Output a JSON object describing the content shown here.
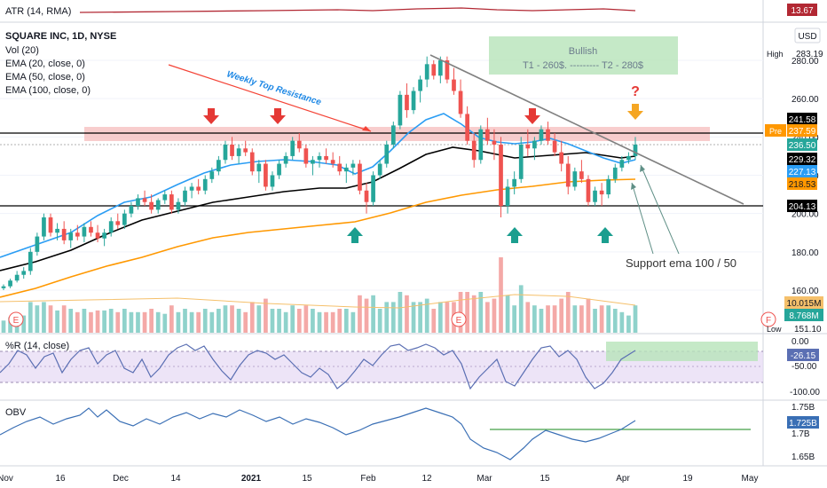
{
  "atr": {
    "label": "ATR (14, RMA)",
    "value": "13.67",
    "color": "#b22833"
  },
  "legend": {
    "symbol": "SQUARE INC, 1D, NYSE",
    "lines": [
      "Vol (20)",
      "EMA (20, close, 0)",
      "EMA (50, close, 0)",
      "EMA (100, close, 0)"
    ]
  },
  "currency_button": "USD",
  "price_axis": {
    "ticks": [
      "280.00",
      "260.00",
      "240.00",
      "220.00",
      "200.00",
      "180.00",
      "160.00"
    ],
    "labels": {
      "high_tag": "High",
      "high": "283.19",
      "pre_tag": "Pre",
      "pre": "237.59",
      "resistance": "241.58",
      "last": "236.50",
      "ema50": "229.32",
      "ema20": "227.13",
      "ema100": "218.53",
      "support": "204.13",
      "vol_ma": "10.015M",
      "vol": "8.768M",
      "low_tag": "Low",
      "low": "151.10"
    }
  },
  "annotations": {
    "weekly_top_resistance": "Weekly Top Resistance",
    "bullish_title": "Bullish",
    "bullish_targets": "T1 - 260$. --------- T2 - 280$",
    "question": "?",
    "support_note": "Support ema 100 / 50",
    "earnings_badge": "E",
    "future_badge": "F"
  },
  "wr": {
    "label": "%R (14, close)",
    "ticks": [
      "0.00",
      "-50.00",
      "-100.00"
    ],
    "value": "-26.15"
  },
  "obv": {
    "label": "OBV",
    "ticks": [
      "1.75B",
      "1.7B",
      "1.65B"
    ],
    "value": "1.725B"
  },
  "time_axis": [
    "Nov",
    "16",
    "Dec",
    "14",
    "2021",
    "15",
    "Feb",
    "12",
    "Mar",
    "15",
    "Apr",
    "19",
    "May"
  ],
  "colors": {
    "up": "#26a69a",
    "down": "#ef5350",
    "ema20": "#2a9df4",
    "ema50": "#000000",
    "ema100": "#ff9800",
    "wr_line": "#5b6fb3",
    "obv_line": "#3a6fb5",
    "resistance_zone": "#f5b8b8",
    "target_zone": "#b7e4b9",
    "wr_band": "#e6d9f3"
  },
  "chart_data": {
    "type": "candlestick",
    "y_ticks": [
      160,
      180,
      200,
      220,
      240,
      260,
      280
    ],
    "levels": {
      "resistance": 241.58,
      "support": 204.13
    },
    "candles": [
      [
        161,
        163,
        160,
        162
      ],
      [
        162,
        166,
        161,
        165
      ],
      [
        165,
        170,
        164,
        168
      ],
      [
        168,
        172,
        166,
        170
      ],
      [
        170,
        182,
        168,
        180
      ],
      [
        180,
        190,
        178,
        188
      ],
      [
        188,
        200,
        186,
        198
      ],
      [
        198,
        200,
        188,
        190
      ],
      [
        190,
        195,
        186,
        192
      ],
      [
        192,
        196,
        184,
        186
      ],
      [
        186,
        192,
        182,
        190
      ],
      [
        190,
        194,
        186,
        188
      ],
      [
        188,
        195,
        185,
        193
      ],
      [
        193,
        196,
        188,
        190
      ],
      [
        190,
        194,
        185,
        187
      ],
      [
        187,
        192,
        183,
        190
      ],
      [
        190,
        198,
        188,
        196
      ],
      [
        196,
        200,
        192,
        194
      ],
      [
        194,
        202,
        192,
        200
      ],
      [
        200,
        206,
        198,
        204
      ],
      [
        204,
        210,
        202,
        208
      ],
      [
        208,
        212,
        204,
        206
      ],
      [
        206,
        210,
        200,
        202
      ],
      [
        202,
        208,
        200,
        207
      ],
      [
        207,
        212,
        205,
        210
      ],
      [
        210,
        212,
        200,
        202
      ],
      [
        202,
        208,
        200,
        206
      ],
      [
        206,
        214,
        204,
        212
      ],
      [
        212,
        216,
        208,
        214
      ],
      [
        214,
        218,
        210,
        212
      ],
      [
        212,
        220,
        210,
        218
      ],
      [
        218,
        224,
        216,
        222
      ],
      [
        222,
        230,
        220,
        228
      ],
      [
        228,
        238,
        226,
        236
      ],
      [
        236,
        240,
        228,
        230
      ],
      [
        230,
        236,
        226,
        234
      ],
      [
        234,
        238,
        230,
        232
      ],
      [
        232,
        234,
        220,
        222
      ],
      [
        222,
        228,
        216,
        226
      ],
      [
        226,
        228,
        212,
        214
      ],
      [
        214,
        222,
        212,
        220
      ],
      [
        220,
        228,
        218,
        226
      ],
      [
        226,
        232,
        224,
        230
      ],
      [
        230,
        240,
        228,
        238
      ],
      [
        238,
        242,
        232,
        234
      ],
      [
        234,
        236,
        224,
        226
      ],
      [
        226,
        230,
        220,
        228
      ],
      [
        228,
        232,
        224,
        230
      ],
      [
        230,
        234,
        226,
        228
      ],
      [
        228,
        232,
        224,
        226
      ],
      [
        226,
        230,
        220,
        222
      ],
      [
        222,
        226,
        216,
        224
      ],
      [
        224,
        228,
        220,
        226
      ],
      [
        226,
        228,
        210,
        212
      ],
      [
        212,
        216,
        200,
        206
      ],
      [
        206,
        222,
        204,
        220
      ],
      [
        220,
        228,
        218,
        226
      ],
      [
        226,
        238,
        224,
        236
      ],
      [
        236,
        248,
        234,
        246
      ],
      [
        246,
        264,
        244,
        262
      ],
      [
        262,
        268,
        250,
        254
      ],
      [
        254,
        266,
        252,
        264
      ],
      [
        264,
        272,
        258,
        270
      ],
      [
        270,
        282,
        266,
        278
      ],
      [
        278,
        280,
        270,
        272
      ],
      [
        272,
        282,
        268,
        280
      ],
      [
        280,
        282,
        268,
        270
      ],
      [
        270,
        276,
        262,
        264
      ],
      [
        264,
        270,
        250,
        252
      ],
      [
        252,
        256,
        236,
        238
      ],
      [
        238,
        242,
        224,
        228
      ],
      [
        228,
        246,
        226,
        244
      ],
      [
        244,
        250,
        236,
        238
      ],
      [
        238,
        244,
        228,
        236
      ],
      [
        236,
        240,
        198,
        204
      ],
      [
        204,
        218,
        200,
        214
      ],
      [
        214,
        222,
        210,
        218
      ],
      [
        218,
        240,
        216,
        236
      ],
      [
        236,
        244,
        230,
        234
      ],
      [
        234,
        240,
        228,
        238
      ],
      [
        238,
        246,
        236,
        244
      ],
      [
        244,
        248,
        236,
        238
      ],
      [
        238,
        242,
        230,
        232
      ],
      [
        232,
        238,
        222,
        226
      ],
      [
        226,
        230,
        210,
        214
      ],
      [
        214,
        224,
        212,
        222
      ],
      [
        222,
        228,
        216,
        218
      ],
      [
        218,
        220,
        204,
        206
      ],
      [
        206,
        214,
        204,
        212
      ],
      [
        212,
        216,
        204,
        210
      ],
      [
        210,
        220,
        208,
        218
      ],
      [
        218,
        226,
        216,
        224
      ],
      [
        224,
        230,
        222,
        228
      ],
      [
        228,
        232,
        226,
        230
      ],
      [
        230,
        240,
        228,
        236
      ]
    ],
    "earnings_markers": [
      "Nov 5",
      "Feb 23"
    ]
  }
}
